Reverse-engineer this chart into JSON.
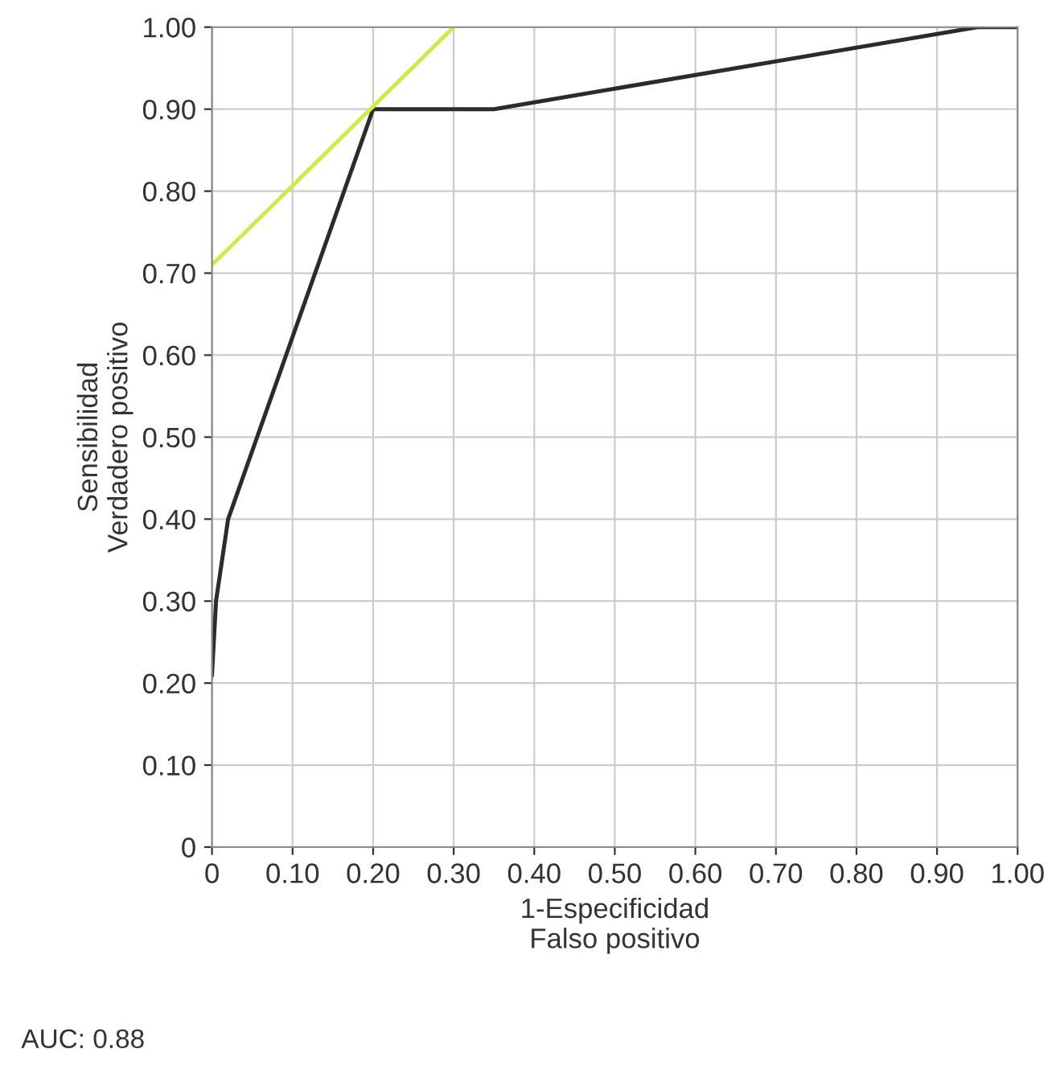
{
  "chart_data": {
    "type": "line",
    "xlabel": "1-Especificidad\nFalso positivo",
    "ylabel": "Sensibilidad\nVerdadero positivo",
    "annotations": [
      "AUC: 0.88"
    ],
    "series": [
      {
        "color": "#2b2b2b",
        "x": [
          0,
          0.005,
          0.02,
          0.2,
          0.35,
          0.95,
          1.0
        ],
        "values": [
          0.21,
          0.3,
          0.4,
          0.9,
          0.9,
          1.0,
          1.0
        ]
      },
      {
        "color": "#d4e84a",
        "x": [
          0,
          0.3
        ],
        "values": [
          0.71,
          1.0
        ]
      }
    ],
    "xlim": [
      0,
      1
    ],
    "ylim": [
      0,
      1
    ],
    "xticks": [
      {
        "value": 0,
        "label": "0"
      },
      {
        "value": 0.1,
        "label": "0.10"
      },
      {
        "value": 0.2,
        "label": "0.20"
      },
      {
        "value": 0.3,
        "label": "0.30"
      },
      {
        "value": 0.4,
        "label": "0.40"
      },
      {
        "value": 0.5,
        "label": "0.50"
      },
      {
        "value": 0.6,
        "label": "0.60"
      },
      {
        "value": 0.7,
        "label": "0.70"
      },
      {
        "value": 0.8,
        "label": "0.80"
      },
      {
        "value": 0.9,
        "label": "0.90"
      },
      {
        "value": 1,
        "label": "1.00"
      }
    ],
    "yticks": [
      {
        "value": 0,
        "label": "0"
      },
      {
        "value": 0.1,
        "label": "0.10"
      },
      {
        "value": 0.2,
        "label": "0.20"
      },
      {
        "value": 0.3,
        "label": "0.30"
      },
      {
        "value": 0.4,
        "label": "0.40"
      },
      {
        "value": 0.5,
        "label": "0.50"
      },
      {
        "value": 0.6,
        "label": "0.60"
      },
      {
        "value": 0.7,
        "label": "0.70"
      },
      {
        "value": 0.8,
        "label": "0.80"
      },
      {
        "value": 0.9,
        "label": "0.90"
      },
      {
        "value": 1,
        "label": "1.00"
      }
    ],
    "grid": true,
    "marker": "none",
    "line_style": "solid"
  }
}
